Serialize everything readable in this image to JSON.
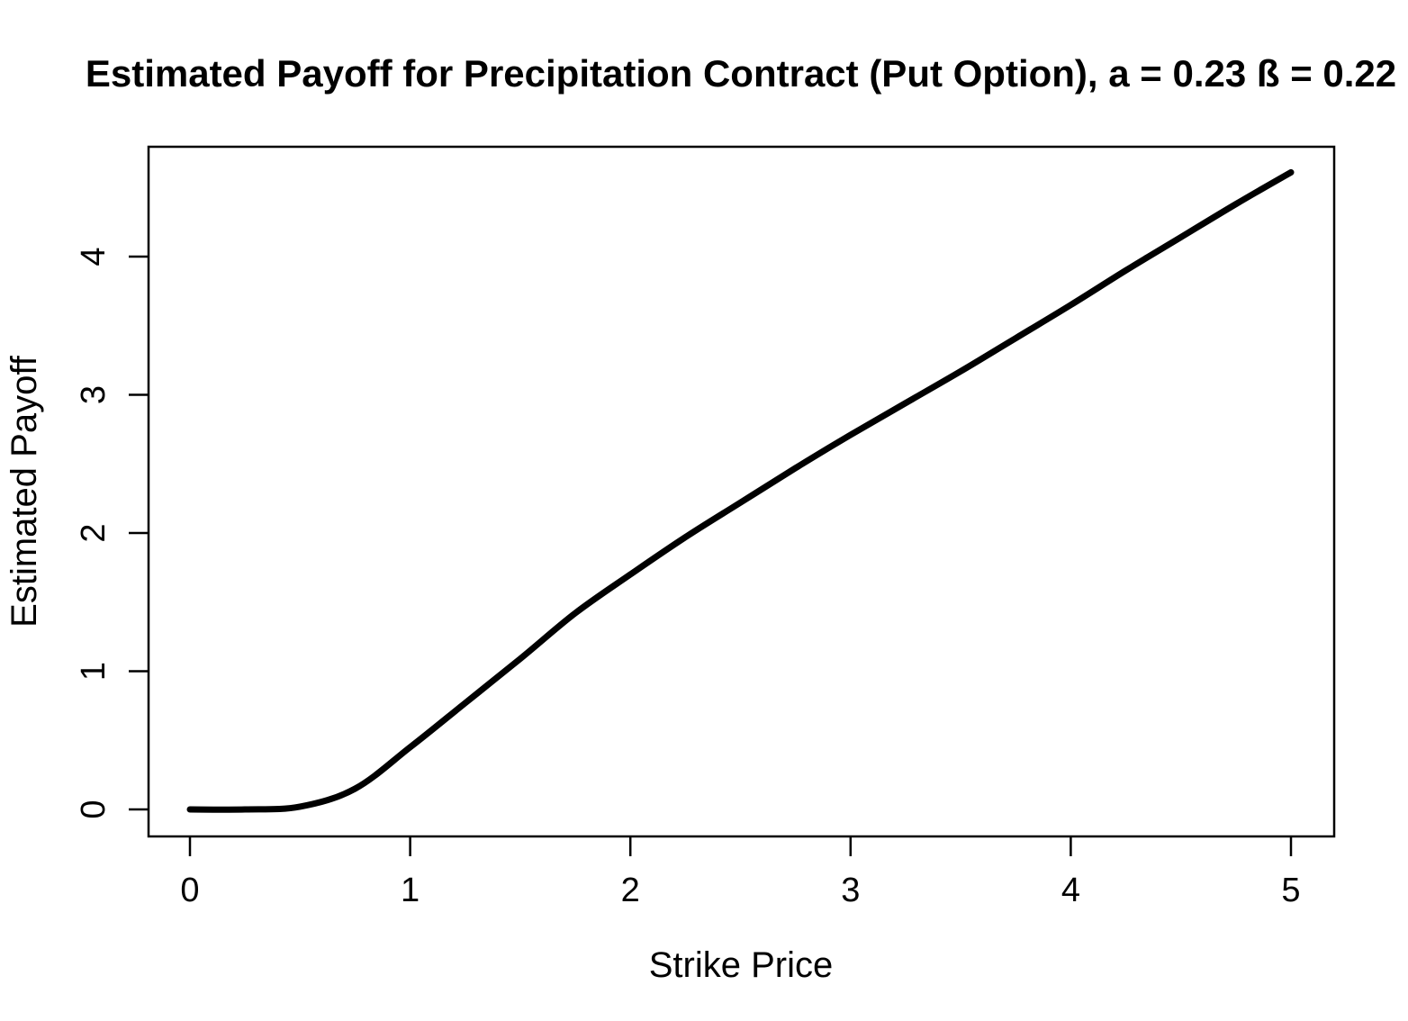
{
  "chart_data": {
    "type": "line",
    "title": "Estimated Payoff for Precipitation Contract (Put Option), a = 0.23 ß = 0.22",
    "xlabel": "Strike Price",
    "ylabel": "Estimated Payoff",
    "x": [
      0,
      0.25,
      0.5,
      0.75,
      1,
      1.25,
      1.5,
      1.75,
      2,
      2.25,
      2.5,
      2.75,
      3,
      3.25,
      3.5,
      3.75,
      4,
      4.25,
      4.5,
      4.75,
      5
    ],
    "y": [
      0,
      0,
      0.02,
      0.15,
      0.45,
      0.77,
      1.09,
      1.42,
      1.7,
      1.97,
      2.22,
      2.47,
      2.71,
      2.94,
      3.17,
      3.41,
      3.65,
      3.9,
      4.14,
      4.38,
      4.61
    ],
    "x_ticks": [
      0,
      1,
      2,
      3,
      4,
      5
    ],
    "x_tick_labels": [
      "0",
      "1",
      "2",
      "3",
      "4",
      "5"
    ],
    "y_ticks": [
      0,
      1,
      2,
      3,
      4
    ],
    "y_tick_labels": [
      "0",
      "1",
      "2",
      "3",
      "4"
    ],
    "xlim": [
      -0.2,
      5.2
    ],
    "ylim": [
      -0.19,
      4.8
    ],
    "line_color": "#000000",
    "axis_color": "#000000",
    "background_color": "#ffffff",
    "grid": false,
    "legend": false
  }
}
